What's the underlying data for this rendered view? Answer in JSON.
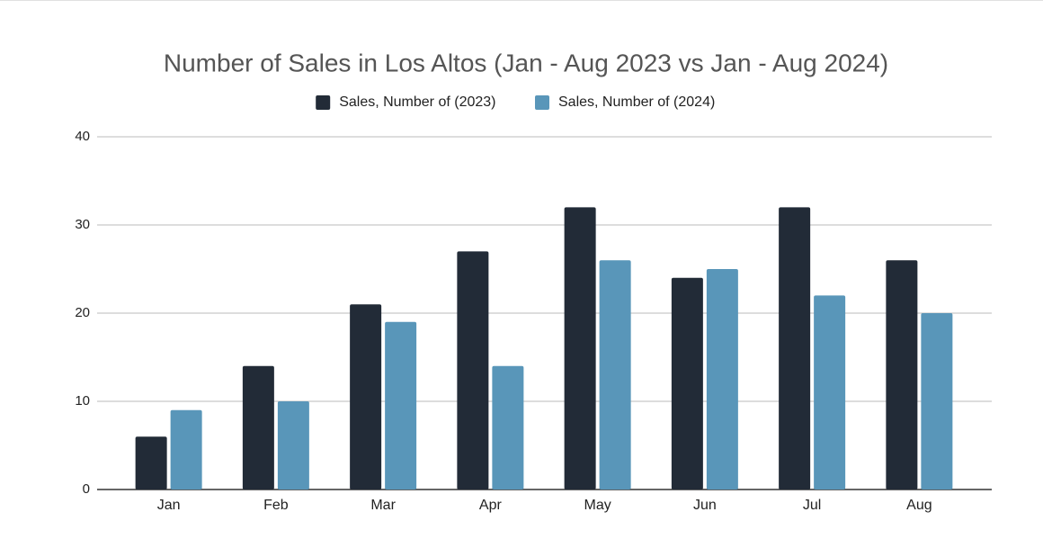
{
  "chart_data": {
    "type": "bar",
    "title": "Number of Sales in Los Altos (Jan - Aug 2023 vs Jan - Aug 2024)",
    "categories": [
      "Jan",
      "Feb",
      "Mar",
      "Apr",
      "May",
      "Jun",
      "Jul",
      "Aug"
    ],
    "series": [
      {
        "name": "Sales, Number of (2023)",
        "color": "#222b37",
        "values": [
          6,
          14,
          21,
          27,
          32,
          24,
          32,
          26
        ]
      },
      {
        "name": "Sales, Number of (2024)",
        "color": "#5996b9",
        "values": [
          9,
          10,
          19,
          14,
          26,
          25,
          22,
          20
        ]
      }
    ],
    "ylim": [
      0,
      40
    ],
    "yticks": [
      0,
      10,
      20,
      30,
      40
    ],
    "grid": true,
    "legend": "top"
  }
}
